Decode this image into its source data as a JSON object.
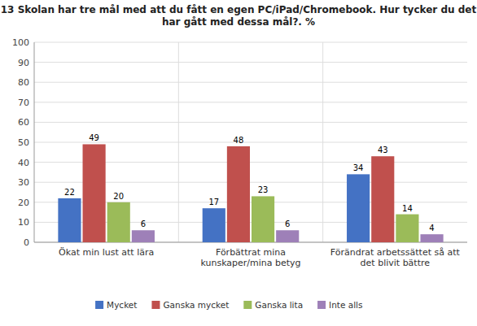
{
  "chart_data": {
    "type": "bar",
    "title": "13 Skolan har tre mål med att du fått en egen PC/iPad/Chromebook. Hur tycker du det\nhar gått med dessa mål?. %",
    "categories": [
      "Ökat min lust att lära",
      "Förbättrat mina\nkunskaper/mina betyg",
      "Förändrat arbetssättet så att\ndet blivit bättre"
    ],
    "series": [
      {
        "name": "Mycket",
        "color": "#4472C4",
        "values": [
          22,
          17,
          34
        ]
      },
      {
        "name": "Ganska mycket",
        "color": "#C0504D",
        "values": [
          49,
          48,
          43
        ]
      },
      {
        "name": "Ganska lita",
        "color": "#9BBB59",
        "values": [
          20,
          23,
          14
        ]
      },
      {
        "name": "Inte alls",
        "color": "#9E80B8",
        "values": [
          6,
          6,
          4
        ]
      }
    ],
    "ylim": [
      0,
      100
    ],
    "yticks": [
      0,
      10,
      20,
      30,
      40,
      50,
      60,
      70,
      80,
      90,
      100
    ],
    "grid": true,
    "legend": "bottom",
    "data_labels": true
  }
}
